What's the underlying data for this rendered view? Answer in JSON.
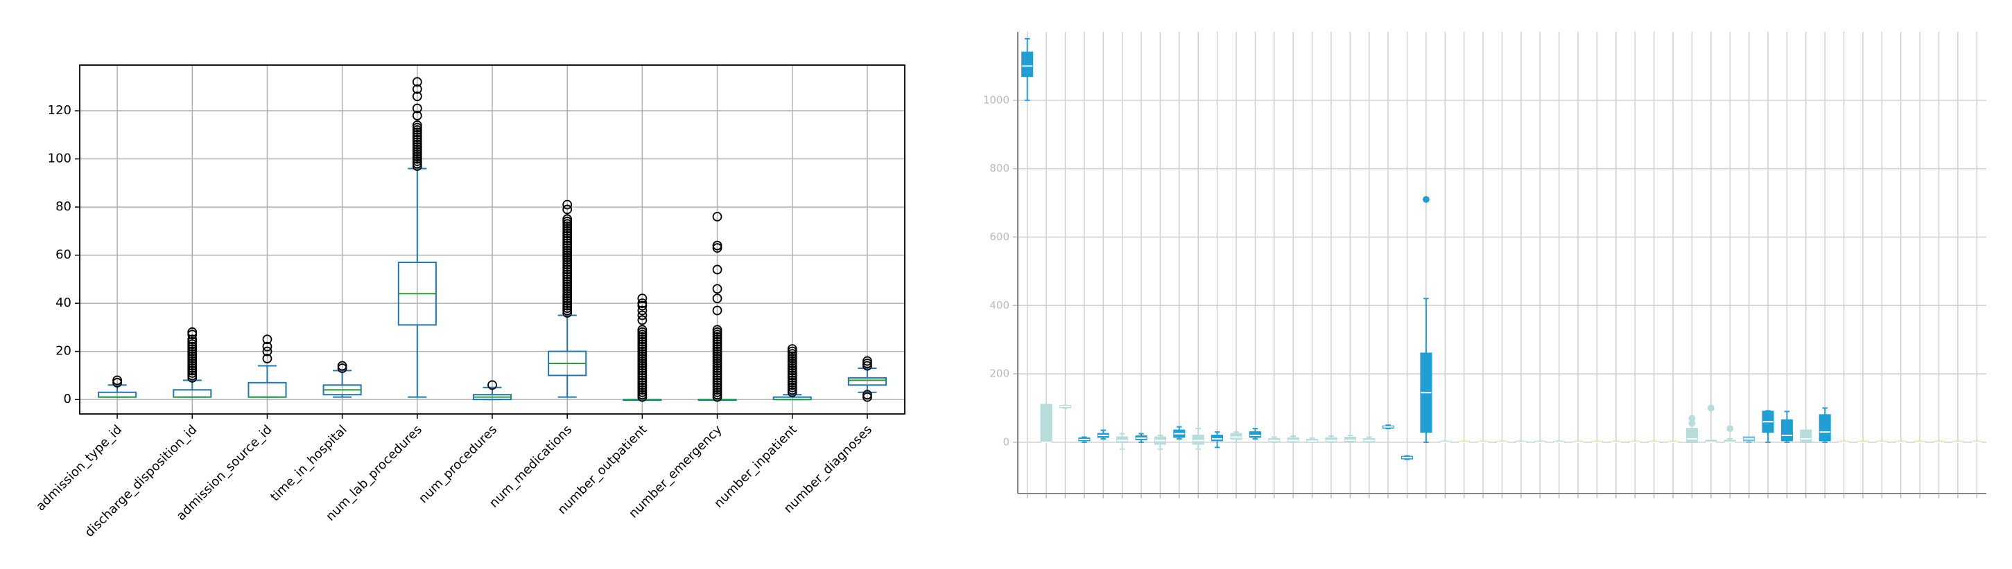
{
  "chart_data": [
    {
      "type": "box",
      "color": "#1f77b4",
      "median_color": "#2ca02c",
      "grid": true,
      "categories": [
        "admission_type_id",
        "discharge_disposition_id",
        "admission_source_id",
        "time_in_hospital",
        "num_lab_procedures",
        "num_procedures",
        "num_medications",
        "number_outpatient",
        "number_emergency",
        "number_inpatient",
        "number_diagnoses"
      ],
      "boxes": [
        {
          "low": 1,
          "q1": 1,
          "med": 1,
          "q3": 3,
          "high": 6,
          "outliers": [
            7,
            8
          ]
        },
        {
          "low": 1,
          "q1": 1,
          "med": 1,
          "q3": 4,
          "high": 8,
          "outliers": [
            9,
            10,
            11,
            12,
            13,
            14,
            15,
            16,
            17,
            18,
            19,
            20,
            21,
            22,
            23,
            24,
            25,
            27,
            28
          ]
        },
        {
          "low": 1,
          "q1": 1,
          "med": 1,
          "q3": 7,
          "high": 14,
          "outliers": [
            17,
            20,
            22,
            25
          ]
        },
        {
          "low": 1,
          "q1": 2,
          "med": 4,
          "q3": 6,
          "high": 12,
          "outliers": [
            13,
            14
          ]
        },
        {
          "low": 1,
          "q1": 31,
          "med": 44,
          "q3": 57,
          "high": 96,
          "outliers": [
            97,
            98,
            99,
            100,
            101,
            102,
            103,
            104,
            105,
            106,
            107,
            108,
            109,
            110,
            111,
            112,
            113,
            114,
            118,
            121,
            126,
            129,
            132
          ]
        },
        {
          "low": 0,
          "q1": 0,
          "med": 1,
          "q3": 2,
          "high": 5,
          "outliers": [
            6
          ]
        },
        {
          "low": 1,
          "q1": 10,
          "med": 15,
          "q3": 20,
          "high": 35,
          "outliers": [
            36,
            37,
            38,
            39,
            40,
            41,
            42,
            43,
            44,
            45,
            46,
            47,
            48,
            49,
            50,
            51,
            52,
            53,
            54,
            55,
            56,
            57,
            58,
            59,
            60,
            61,
            62,
            63,
            64,
            65,
            66,
            67,
            68,
            69,
            70,
            71,
            72,
            73,
            74,
            75,
            79,
            81
          ]
        },
        {
          "low": 0,
          "q1": 0,
          "med": 0,
          "q3": 0,
          "high": 0,
          "outliers": [
            1,
            2,
            3,
            4,
            5,
            6,
            7,
            8,
            9,
            10,
            11,
            12,
            13,
            14,
            15,
            16,
            17,
            18,
            19,
            20,
            21,
            22,
            23,
            24,
            25,
            26,
            27,
            28,
            29,
            33,
            35,
            37,
            39,
            40,
            42
          ]
        },
        {
          "low": 0,
          "q1": 0,
          "med": 0,
          "q3": 0,
          "high": 0,
          "outliers": [
            1,
            2,
            3,
            4,
            5,
            6,
            7,
            8,
            9,
            10,
            11,
            12,
            13,
            14,
            15,
            16,
            17,
            18,
            19,
            20,
            21,
            22,
            23,
            24,
            25,
            26,
            27,
            28,
            29,
            37,
            42,
            46,
            54,
            63,
            64,
            76
          ]
        },
        {
          "low": 0,
          "q1": 0,
          "med": 0,
          "q3": 1,
          "high": 2,
          "outliers": [
            3,
            4,
            5,
            6,
            7,
            8,
            9,
            10,
            11,
            12,
            13,
            14,
            15,
            16,
            17,
            18,
            19,
            20,
            21
          ]
        },
        {
          "low": 3,
          "q1": 6,
          "med": 8,
          "q3": 9,
          "high": 13,
          "outliers": [
            1,
            2,
            14,
            15,
            16
          ]
        }
      ],
      "ylim": [
        -6,
        139
      ],
      "yticks": [
        0,
        20,
        40,
        60,
        80,
        100,
        120
      ]
    },
    {
      "type": "box",
      "median_color": "#ffffff",
      "grid": true,
      "boxes": [
        {
          "low": 1000,
          "q1": 1070,
          "med": 1100,
          "q3": 1140,
          "high": 1180,
          "color": "#1f9fd5"
        },
        {
          "low": 0,
          "q1": 0,
          "med": 0,
          "q3": 110,
          "high": 110,
          "color": "#b7dcdc"
        },
        {
          "low": 100,
          "q1": 102,
          "med": 105,
          "q3": 107,
          "high": 108,
          "color": "#b7dcdc"
        },
        {
          "low": 0,
          "q1": 5,
          "med": 8,
          "q3": 12,
          "high": 15,
          "color": "#1f9fd5"
        },
        {
          "low": 10,
          "q1": 15,
          "med": 20,
          "q3": 25,
          "high": 35,
          "color": "#1f9fd5"
        },
        {
          "low": -20,
          "q1": 0,
          "med": 5,
          "q3": 15,
          "high": 25,
          "color": "#b7dcdc"
        },
        {
          "low": 0,
          "q1": 8,
          "med": 12,
          "q3": 18,
          "high": 25,
          "color": "#1f9fd5"
        },
        {
          "low": -20,
          "q1": -5,
          "med": 5,
          "q3": 15,
          "high": 20,
          "color": "#b7dcdc"
        },
        {
          "low": 10,
          "q1": 15,
          "med": 25,
          "q3": 35,
          "high": 45,
          "color": "#1f9fd5"
        },
        {
          "low": -20,
          "q1": -5,
          "med": 5,
          "q3": 20,
          "high": 40,
          "color": "#b7dcdc"
        },
        {
          "low": -15,
          "q1": 5,
          "med": 10,
          "q3": 20,
          "high": 30,
          "color": "#1f9fd5"
        },
        {
          "low": 0,
          "q1": 10,
          "med": 15,
          "q3": 25,
          "high": 30,
          "color": "#b7dcdc"
        },
        {
          "low": 10,
          "q1": 15,
          "med": 20,
          "q3": 30,
          "high": 40,
          "color": "#1f9fd5"
        },
        {
          "low": 0,
          "q1": 2,
          "med": 5,
          "q3": 10,
          "high": 15,
          "color": "#b7dcdc"
        },
        {
          "low": 0,
          "q1": 2,
          "med": 5,
          "q3": 12,
          "high": 18,
          "color": "#b7dcdc"
        },
        {
          "low": 0,
          "q1": 0,
          "med": 3,
          "q3": 8,
          "high": 12,
          "color": "#b7dcdc"
        },
        {
          "low": 0,
          "q1": 2,
          "med": 5,
          "q3": 12,
          "high": 18,
          "color": "#b7dcdc"
        },
        {
          "low": 0,
          "q1": 2,
          "med": 6,
          "q3": 14,
          "high": 20,
          "color": "#b7dcdc"
        },
        {
          "low": 0,
          "q1": 2,
          "med": 5,
          "q3": 10,
          "high": 15,
          "color": "#b7dcdc"
        },
        {
          "low": 40,
          "q1": 42,
          "med": 45,
          "q3": 47,
          "high": 50,
          "color": "#1f9fd5"
        },
        {
          "low": -50,
          "q1": -48,
          "med": -45,
          "q3": -42,
          "high": -40,
          "color": "#1f9fd5"
        },
        {
          "low": 0,
          "q1": 30,
          "med": 145,
          "q3": 260,
          "high": 420,
          "color": "#1f9fd5",
          "outliers": [
            710
          ]
        },
        {
          "low": 0,
          "q1": 0,
          "med": 0,
          "q3": 2,
          "high": 3,
          "color": "#b7dcdc"
        },
        {
          "low": 0,
          "q1": 0,
          "med": 0,
          "q3": 2,
          "high": 3,
          "color": "#e8dcaa"
        },
        {
          "low": 0,
          "q1": 0,
          "med": 0,
          "q3": 2,
          "high": 3,
          "color": "#e8dcaa"
        },
        {
          "low": 0,
          "q1": 0,
          "med": 0,
          "q3": 2,
          "high": 3,
          "color": "#e8dcaa"
        },
        {
          "low": 0,
          "q1": 0,
          "med": 0,
          "q3": 2,
          "high": 3,
          "color": "#b7dcdc"
        },
        {
          "low": 0,
          "q1": 0,
          "med": 0,
          "q3": 2,
          "high": 3,
          "color": "#b7dcdc"
        },
        {
          "low": 0,
          "q1": 0,
          "med": 0,
          "q3": 2,
          "high": 3,
          "color": "#b7dcdc"
        },
        {
          "low": 0,
          "q1": 0,
          "med": 0,
          "q3": 2,
          "high": 3,
          "color": "#e8dcaa"
        },
        {
          "low": 0,
          "q1": 0,
          "med": 0,
          "q3": 2,
          "high": 3,
          "color": "#e8dcaa"
        },
        {
          "low": 0,
          "q1": 0,
          "med": 0,
          "q3": 2,
          "high": 3,
          "color": "#e8dcaa"
        },
        {
          "low": 0,
          "q1": 0,
          "med": 0,
          "q3": 2,
          "high": 3,
          "color": "#e8dcaa"
        },
        {
          "low": 0,
          "q1": 0,
          "med": 0,
          "q3": 2,
          "high": 3,
          "color": "#e8dcaa"
        },
        {
          "low": 0,
          "q1": 0,
          "med": 0,
          "q3": 2,
          "high": 3,
          "color": "#e8dcaa"
        },
        {
          "low": 0,
          "q1": 0,
          "med": 10,
          "q3": 40,
          "high": 40,
          "color": "#b7dcdc",
          "outliers": [
            55,
            70
          ]
        },
        {
          "low": 0,
          "q1": 0,
          "med": 0,
          "q3": 5,
          "high": 5,
          "color": "#b7dcdc",
          "outliers": [
            100
          ]
        },
        {
          "low": 0,
          "q1": 0,
          "med": 0,
          "q3": 5,
          "high": 10,
          "color": "#b7dcdc",
          "outliers": [
            40
          ]
        },
        {
          "low": 0,
          "q1": 5,
          "med": 10,
          "q3": 15,
          "high": 15,
          "color": "#6fc0e0"
        },
        {
          "low": 0,
          "q1": 30,
          "med": 60,
          "q3": 90,
          "high": 92,
          "color": "#1f9fd5"
        },
        {
          "low": 0,
          "q1": 5,
          "med": 20,
          "q3": 65,
          "high": 90,
          "color": "#1f9fd5"
        },
        {
          "low": 0,
          "q1": 0,
          "med": 10,
          "q3": 35,
          "high": 35,
          "color": "#b7dcdc"
        },
        {
          "low": 0,
          "q1": 5,
          "med": 30,
          "q3": 80,
          "high": 100,
          "color": "#1f9fd5"
        },
        {
          "low": 0,
          "q1": 0,
          "med": 0,
          "q3": 2,
          "high": 3,
          "color": "#e8dcaa"
        },
        {
          "low": 0,
          "q1": 0,
          "med": 0,
          "q3": 2,
          "high": 3,
          "color": "#e8dcaa"
        },
        {
          "low": 0,
          "q1": 0,
          "med": 0,
          "q3": 2,
          "high": 3,
          "color": "#e8dcaa"
        },
        {
          "low": 0,
          "q1": 0,
          "med": 0,
          "q3": 2,
          "high": 3,
          "color": "#e8dcaa"
        },
        {
          "low": 0,
          "q1": 0,
          "med": 0,
          "q3": 2,
          "high": 3,
          "color": "#e8dcaa"
        },
        {
          "low": 0,
          "q1": 0,
          "med": 0,
          "q3": 2,
          "high": 3,
          "color": "#e8dcaa"
        },
        {
          "low": 0,
          "q1": 0,
          "med": 0,
          "q3": 2,
          "high": 3,
          "color": "#e8dcaa"
        },
        {
          "low": 0,
          "q1": 0,
          "med": 0,
          "q3": 2,
          "high": 3,
          "color": "#e8dcaa"
        }
      ],
      "ylim": [
        -150,
        1200
      ],
      "yticks": [
        0,
        200,
        400,
        600,
        800,
        1000
      ]
    }
  ]
}
